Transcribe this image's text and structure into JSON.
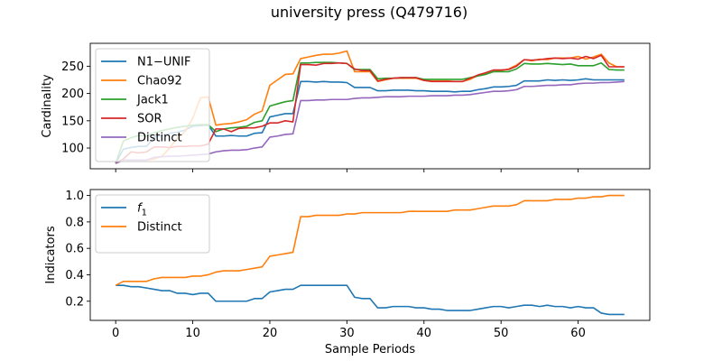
{
  "figure": {
    "title": "university press (Q479716)"
  },
  "chart_data": [
    {
      "type": "line",
      "xlabel": "",
      "ylabel": "Cardinality",
      "xlim": [
        -3.3,
        69.3
      ],
      "ylim": [
        62,
        292
      ],
      "xticks": [
        0,
        10,
        20,
        30,
        40,
        50,
        60
      ],
      "yticks": [
        100,
        150,
        200,
        250
      ],
      "legend_position": "top-left",
      "grid": false,
      "series": [
        {
          "name": "N1−UNIF",
          "color": "#1f77b4",
          "x": [
            0,
            1,
            2,
            3,
            4,
            5,
            6,
            7,
            8,
            9,
            10,
            11,
            12,
            13,
            14,
            15,
            16,
            17,
            18,
            19,
            20,
            21,
            22,
            23,
            24,
            25,
            26,
            27,
            28,
            29,
            30,
            31,
            32,
            33,
            34,
            35,
            36,
            37,
            38,
            39,
            40,
            41,
            42,
            43,
            44,
            45,
            46,
            47,
            48,
            49,
            50,
            51,
            52,
            53,
            54,
            55,
            56,
            57,
            58,
            59,
            60,
            61,
            62,
            63,
            64,
            65,
            66
          ],
          "y": [
            72,
            98,
            101,
            103,
            103,
            120,
            123,
            127,
            129,
            133,
            140,
            141,
            142,
            122,
            122,
            123,
            122,
            122,
            127,
            128,
            157,
            160,
            163,
            163,
            222,
            222,
            221,
            222,
            221,
            221,
            220,
            211,
            211,
            211,
            205,
            205,
            206,
            206,
            206,
            205,
            205,
            204,
            204,
            204,
            203,
            204,
            204,
            207,
            209,
            212,
            212,
            213,
            215,
            223,
            223,
            223,
            225,
            224,
            225,
            224,
            225,
            227,
            225,
            225,
            225,
            225,
            225
          ]
        },
        {
          "name": "Chao92",
          "color": "#ff7f0e",
          "x": [
            0,
            1,
            2,
            3,
            4,
            5,
            6,
            7,
            8,
            9,
            10,
            11,
            12,
            13,
            14,
            15,
            16,
            17,
            18,
            19,
            20,
            21,
            22,
            23,
            24,
            25,
            26,
            27,
            28,
            29,
            30,
            31,
            32,
            33,
            34,
            35,
            36,
            37,
            38,
            39,
            40,
            41,
            42,
            43,
            44,
            45,
            46,
            47,
            48,
            49,
            50,
            51,
            52,
            53,
            54,
            55,
            56,
            57,
            58,
            59,
            60,
            61,
            62,
            63,
            64,
            65,
            66
          ],
          "y": [
            72,
            78,
            78,
            78,
            78,
            80,
            85,
            100,
            118,
            130,
            155,
            192,
            194,
            142,
            144,
            145,
            148,
            152,
            162,
            168,
            215,
            225,
            235,
            236,
            264,
            267,
            270,
            272,
            272,
            274,
            278,
            240,
            240,
            240,
            222,
            225,
            228,
            228,
            228,
            228,
            224,
            223,
            223,
            223,
            222,
            222,
            226,
            233,
            236,
            240,
            242,
            245,
            252,
            262,
            260,
            263,
            262,
            265,
            265,
            265,
            268,
            263,
            267,
            272,
            256,
            249,
            249
          ]
        },
        {
          "name": "Jack1",
          "color": "#2ca02c",
          "x": [
            0,
            1,
            2,
            3,
            4,
            5,
            6,
            7,
            8,
            9,
            10,
            11,
            12,
            13,
            14,
            15,
            16,
            17,
            18,
            19,
            20,
            21,
            22,
            23,
            24,
            25,
            26,
            27,
            28,
            29,
            30,
            31,
            32,
            33,
            34,
            35,
            36,
            37,
            38,
            39,
            40,
            41,
            42,
            43,
            44,
            45,
            46,
            47,
            48,
            49,
            50,
            51,
            52,
            53,
            54,
            55,
            56,
            57,
            58,
            59,
            60,
            61,
            62,
            63,
            64,
            65,
            66
          ],
          "y": [
            72,
            113,
            119,
            123,
            122,
            128,
            132,
            135,
            138,
            140,
            142,
            143,
            143,
            130,
            135,
            137,
            138,
            140,
            147,
            150,
            177,
            181,
            185,
            187,
            256,
            256,
            257,
            257,
            257,
            256,
            255,
            244,
            244,
            244,
            227,
            228,
            228,
            229,
            229,
            229,
            226,
            226,
            226,
            226,
            226,
            226,
            229,
            232,
            235,
            240,
            240,
            240,
            245,
            255,
            254,
            254,
            255,
            254,
            253,
            254,
            251,
            251,
            251,
            256,
            244,
            243,
            243
          ]
        },
        {
          "name": "SOR",
          "color": "#d62728",
          "x": [
            0,
            1,
            2,
            3,
            4,
            5,
            6,
            7,
            8,
            9,
            10,
            11,
            12,
            13,
            14,
            15,
            16,
            17,
            18,
            19,
            20,
            21,
            22,
            23,
            24,
            25,
            26,
            27,
            28,
            29,
            30,
            31,
            32,
            33,
            34,
            35,
            36,
            37,
            38,
            39,
            40,
            41,
            42,
            43,
            44,
            45,
            46,
            47,
            48,
            49,
            50,
            51,
            52,
            53,
            54,
            55,
            56,
            57,
            58,
            59,
            60,
            61,
            62,
            63,
            64,
            65,
            66
          ],
          "y": [
            72,
            80,
            93,
            91,
            93,
            102,
            102,
            101,
            103,
            103,
            104,
            104,
            107,
            135,
            135,
            130,
            136,
            137,
            137,
            140,
            146,
            146,
            150,
            148,
            253,
            253,
            252,
            255,
            255,
            256,
            255,
            245,
            242,
            242,
            223,
            226,
            228,
            229,
            229,
            229,
            224,
            222,
            222,
            222,
            222,
            222,
            228,
            234,
            238,
            243,
            243,
            244,
            250,
            262,
            261,
            262,
            264,
            265,
            264,
            265,
            263,
            268,
            264,
            270,
            249,
            249,
            249
          ]
        },
        {
          "name": "Distinct",
          "color": "#9467bd",
          "x": [
            0,
            1,
            2,
            3,
            4,
            5,
            6,
            7,
            8,
            9,
            10,
            11,
            12,
            13,
            14,
            15,
            16,
            17,
            18,
            19,
            20,
            21,
            22,
            23,
            24,
            25,
            26,
            27,
            28,
            29,
            30,
            31,
            32,
            33,
            34,
            35,
            36,
            37,
            38,
            39,
            40,
            41,
            42,
            43,
            44,
            45,
            46,
            47,
            48,
            49,
            50,
            51,
            52,
            53,
            54,
            55,
            56,
            57,
            58,
            59,
            60,
            61,
            62,
            63,
            64,
            65,
            66
          ],
          "y": [
            72,
            78,
            78,
            78,
            78,
            83,
            84,
            85,
            85,
            86,
            87,
            88,
            89,
            93,
            95,
            96,
            96,
            97,
            100,
            102,
            120,
            122,
            125,
            126,
            187,
            187,
            188,
            188,
            189,
            189,
            189,
            191,
            192,
            192,
            193,
            194,
            194,
            194,
            195,
            195,
            195,
            196,
            196,
            196,
            197,
            197,
            198,
            200,
            202,
            204,
            204,
            205,
            207,
            213,
            213,
            214,
            215,
            215,
            216,
            216,
            218,
            219,
            219,
            220,
            220,
            221,
            222
          ]
        }
      ]
    },
    {
      "type": "line",
      "xlabel": "Sample Periods",
      "ylabel": "Indicators",
      "xlim": [
        -3.3,
        69.3
      ],
      "ylim": [
        0.055,
        1.045
      ],
      "xticks": [
        0,
        10,
        20,
        30,
        40,
        50,
        60
      ],
      "yticks": [
        0.2,
        0.4,
        0.6,
        0.8,
        1.0
      ],
      "ytick_labels": [
        "0.2",
        "0.4",
        "0.6",
        "0.8",
        "1.0"
      ],
      "legend_position": "top-left",
      "grid": false,
      "series": [
        {
          "name": "f1",
          "color": "#1f77b4",
          "x": [
            0,
            1,
            2,
            3,
            4,
            5,
            6,
            7,
            8,
            9,
            10,
            11,
            12,
            13,
            14,
            15,
            16,
            17,
            18,
            19,
            20,
            21,
            22,
            23,
            24,
            25,
            26,
            27,
            28,
            29,
            30,
            31,
            32,
            33,
            34,
            35,
            36,
            37,
            38,
            39,
            40,
            41,
            42,
            43,
            44,
            45,
            46,
            47,
            48,
            49,
            50,
            51,
            52,
            53,
            54,
            55,
            56,
            57,
            58,
            59,
            60,
            61,
            62,
            63,
            64,
            65,
            66
          ],
          "y": [
            0.32,
            0.32,
            0.31,
            0.31,
            0.3,
            0.29,
            0.28,
            0.28,
            0.26,
            0.26,
            0.25,
            0.26,
            0.26,
            0.2,
            0.2,
            0.2,
            0.2,
            0.2,
            0.22,
            0.22,
            0.27,
            0.28,
            0.29,
            0.29,
            0.32,
            0.32,
            0.32,
            0.32,
            0.32,
            0.32,
            0.32,
            0.23,
            0.22,
            0.22,
            0.15,
            0.15,
            0.16,
            0.16,
            0.16,
            0.15,
            0.15,
            0.14,
            0.14,
            0.13,
            0.13,
            0.13,
            0.13,
            0.14,
            0.15,
            0.16,
            0.16,
            0.15,
            0.16,
            0.17,
            0.17,
            0.16,
            0.17,
            0.16,
            0.16,
            0.15,
            0.16,
            0.15,
            0.15,
            0.11,
            0.1,
            0.1,
            0.1
          ]
        },
        {
          "name": "Distinct",
          "color": "#ff7f0e",
          "x": [
            0,
            1,
            2,
            3,
            4,
            5,
            6,
            7,
            8,
            9,
            10,
            11,
            12,
            13,
            14,
            15,
            16,
            17,
            18,
            19,
            20,
            21,
            22,
            23,
            24,
            25,
            26,
            27,
            28,
            29,
            30,
            31,
            32,
            33,
            34,
            35,
            36,
            37,
            38,
            39,
            40,
            41,
            42,
            43,
            44,
            45,
            46,
            47,
            48,
            49,
            50,
            51,
            52,
            53,
            54,
            55,
            56,
            57,
            58,
            59,
            60,
            61,
            62,
            63,
            64,
            65,
            66
          ],
          "y": [
            0.32,
            0.35,
            0.35,
            0.35,
            0.35,
            0.37,
            0.38,
            0.38,
            0.38,
            0.38,
            0.39,
            0.39,
            0.4,
            0.42,
            0.43,
            0.43,
            0.43,
            0.44,
            0.45,
            0.46,
            0.54,
            0.55,
            0.56,
            0.57,
            0.84,
            0.84,
            0.85,
            0.85,
            0.85,
            0.85,
            0.86,
            0.86,
            0.87,
            0.87,
            0.87,
            0.87,
            0.87,
            0.87,
            0.88,
            0.88,
            0.88,
            0.88,
            0.88,
            0.88,
            0.89,
            0.89,
            0.89,
            0.9,
            0.91,
            0.92,
            0.92,
            0.92,
            0.93,
            0.96,
            0.96,
            0.96,
            0.96,
            0.97,
            0.97,
            0.97,
            0.98,
            0.98,
            0.99,
            0.99,
            1.0,
            1.0,
            1.0
          ]
        }
      ]
    }
  ]
}
